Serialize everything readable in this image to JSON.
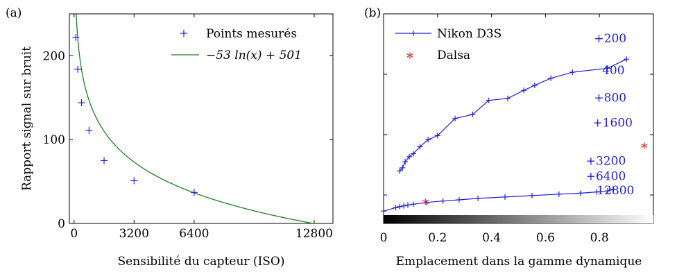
{
  "chart_data": [
    {
      "panel_label": "(a)",
      "type": "scatter",
      "xlabel": "Sensibilité du capteur (ISO)",
      "ylabel": "Rapport signal sur bruit",
      "xlim": [
        -250,
        13800
      ],
      "ylim": [
        0,
        250
      ],
      "xticks": [
        "0",
        "3200",
        "6400",
        "12800"
      ],
      "xtick_values": [
        0,
        3200,
        6400,
        12800
      ],
      "yticks": [
        "0",
        "100",
        "200"
      ],
      "ytick_values": [
        0,
        100,
        200
      ],
      "legend_position": "top-right",
      "series": [
        {
          "name": "Points mesurés",
          "marker": "+",
          "color": "#1f1fd9",
          "points": [
            [
              100,
              222
            ],
            [
              200,
              184
            ],
            [
              400,
              144
            ],
            [
              800,
              111
            ],
            [
              1600,
              75
            ],
            [
              3200,
              51
            ],
            [
              6400,
              37
            ],
            [
              12800,
              0
            ]
          ]
        },
        {
          "name": "−53 ln(x) + 501",
          "color": "#1e7f1e",
          "formula": {
            "a": -53,
            "b": 501
          }
        }
      ]
    },
    {
      "panel_label": "(b)",
      "type": "line",
      "xlabel": "Emplacement dans la gamme dynamique",
      "xlim": [
        0,
        1
      ],
      "ylim": [
        0,
        1
      ],
      "xticks": [
        "0",
        "0.2",
        "0.4",
        "0.6",
        "0.8"
      ],
      "xtick_values": [
        0,
        0.2,
        0.4,
        0.6,
        0.8
      ],
      "yticks_values": [
        0.1,
        0.4,
        0.7,
        1.0
      ],
      "gradient_bar": true,
      "legend_position": "top-left",
      "series": [
        {
          "name": "Nikon D3S",
          "color": "#1f1fd9",
          "marker": "+",
          "curves": [
            [
              [
                0.06,
                0.22
              ],
              [
                0.07,
                0.235
              ],
              [
                0.08,
                0.265
              ],
              [
                0.095,
                0.29
              ],
              [
                0.11,
                0.305
              ],
              [
                0.135,
                0.34
              ],
              [
                0.165,
                0.375
              ],
              [
                0.2,
                0.395
              ],
              [
                0.265,
                0.48
              ],
              [
                0.33,
                0.5
              ],
              [
                0.39,
                0.57
              ],
              [
                0.46,
                0.58
              ],
              [
                0.52,
                0.62
              ],
              [
                0.56,
                0.645
              ],
              [
                0.62,
                0.68
              ],
              [
                0.7,
                0.71
              ],
              [
                0.83,
                0.73
              ],
              [
                0.9,
                0.775
              ]
            ],
            [
              [
                0.0,
                0.02
              ],
              [
                0.045,
                0.037
              ],
              [
                0.06,
                0.042
              ],
              [
                0.075,
                0.046
              ],
              [
                0.09,
                0.05
              ],
              [
                0.11,
                0.054
              ],
              [
                0.16,
                0.063
              ],
              [
                0.22,
                0.07
              ],
              [
                0.28,
                0.076
              ],
              [
                0.35,
                0.083
              ],
              [
                0.45,
                0.09
              ],
              [
                0.55,
                0.097
              ],
              [
                0.65,
                0.104
              ],
              [
                0.73,
                0.109
              ],
              [
                0.79,
                0.115
              ],
              [
                0.83,
                0.12
              ],
              [
                0.85,
                0.127
              ]
            ]
          ]
        },
        {
          "name": "Dalsa",
          "color": "#e02020",
          "marker": "*",
          "points": [
            [
              0.155,
              0.065
            ],
            [
              0.966,
              0.345
            ]
          ]
        }
      ],
      "annotations": [
        {
          "text": "+200",
          "x": 0.78,
          "y": 0.88
        },
        {
          "text": "400",
          "x": 0.81,
          "y": 0.72
        },
        {
          "text": "+800",
          "x": 0.78,
          "y": 0.585
        },
        {
          "text": "+1600",
          "x": 0.775,
          "y": 0.46
        },
        {
          "text": "+3200",
          "x": 0.75,
          "y": 0.27
        },
        {
          "text": "+6400",
          "x": 0.75,
          "y": 0.195
        },
        {
          "text": "12800",
          "x": 0.79,
          "y": 0.125
        }
      ]
    }
  ]
}
